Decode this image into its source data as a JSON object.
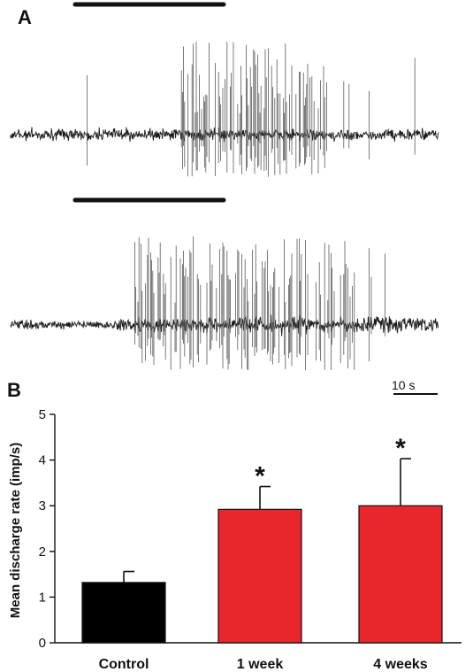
{
  "panel_a": {
    "letter": "A",
    "scale_bar_label": "10 s",
    "trace_color": "#1a1a1a"
  },
  "panel_b": {
    "letter": "B"
  },
  "chart_data": {
    "type": "bar",
    "categories": [
      "Control",
      "1 week",
      "4 weeks"
    ],
    "values": [
      1.32,
      2.92,
      3.0
    ],
    "errors": [
      0.24,
      0.5,
      1.03
    ],
    "significance": [
      "",
      "*",
      "*"
    ],
    "bar_colors": [
      "#000000",
      "#e8262c",
      "#e8262c"
    ],
    "title": "",
    "xlabel": "",
    "ylabel": "Mean discharge rate (imp/s)",
    "ylim": [
      0,
      5
    ],
    "yticks": [
      "0",
      "1",
      "2",
      "3",
      "4",
      "5"
    ],
    "grid": false,
    "legend": "none"
  }
}
